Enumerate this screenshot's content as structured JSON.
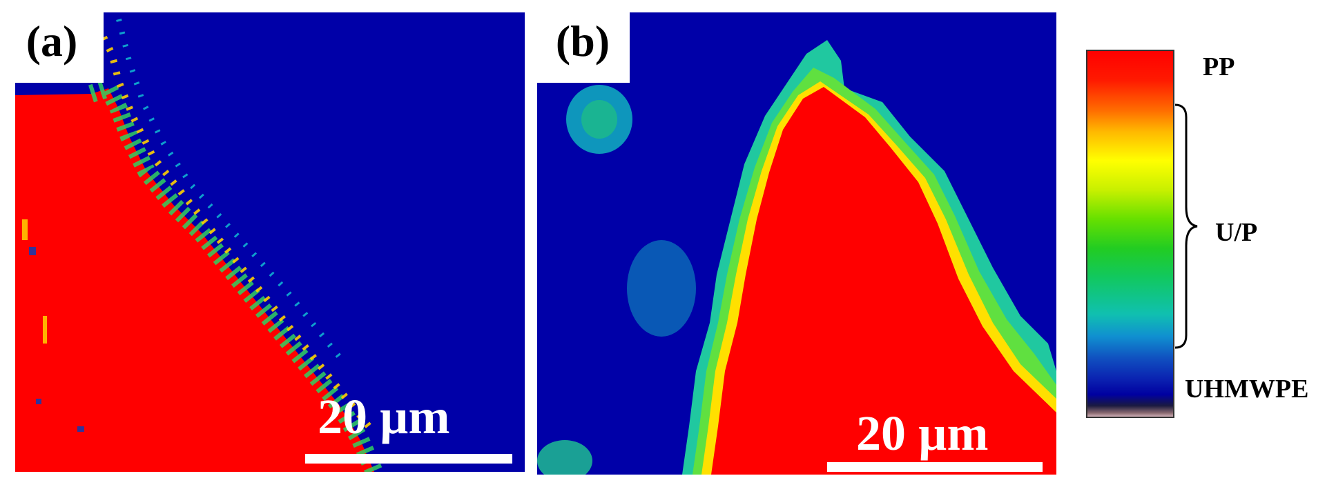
{
  "panels": [
    {
      "label": "(a)",
      "scale_bar_text": "20 µm"
    },
    {
      "label": "(b)",
      "scale_bar_text": "20 µm"
    }
  ],
  "legend": {
    "top_label": "PP",
    "middle_label": "U/P",
    "bottom_label": "UHMWPE"
  },
  "colors": {
    "pp": "#ff0000",
    "uhmwpe": "#0000a8",
    "interface_gradient": [
      "#ffff00",
      "#66e000",
      "#10c0b0"
    ]
  }
}
